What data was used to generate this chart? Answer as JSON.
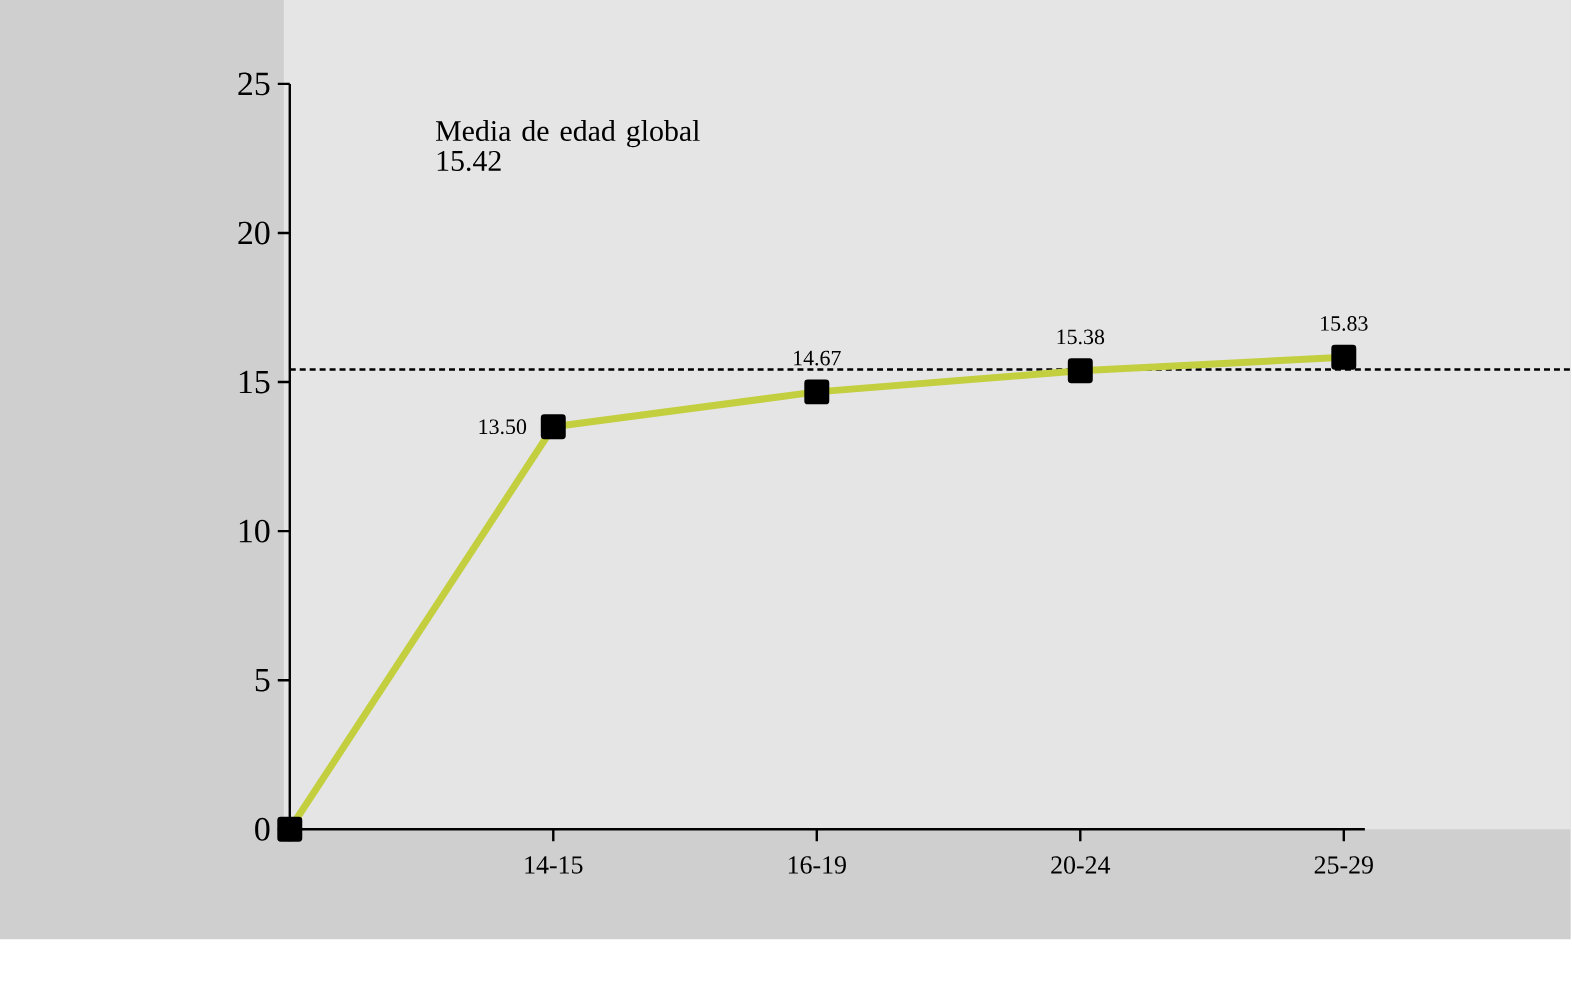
{
  "chart_data": {
    "type": "line",
    "categories": [
      null,
      "14-15",
      "16-19",
      "20-24",
      "25-29"
    ],
    "values": [
      0,
      13.5,
      14.67,
      15.38,
      15.83
    ],
    "value_labels": [
      null,
      "13.50",
      "14.67",
      "15.38",
      "15.83"
    ],
    "color": "#c3cf3f",
    "marker": "square",
    "line_style": "solid",
    "ylim": [
      0,
      25
    ],
    "yticks": [
      0,
      5,
      10,
      15,
      20,
      25
    ],
    "ref_lines": [
      {
        "axis": "y",
        "value": 15.42,
        "label": "Media de edad global 15.42",
        "line_style": "dotted"
      }
    ]
  }
}
